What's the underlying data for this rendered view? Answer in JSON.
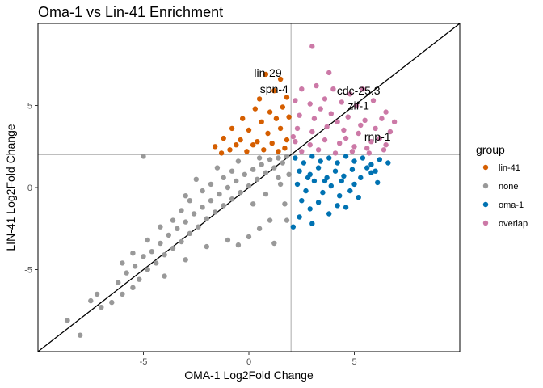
{
  "chart_data": {
    "type": "scatter",
    "title": "Oma-1 vs Lin-41 Enrichment",
    "xlabel": "OMA-1 Log2Fold Change",
    "ylabel": "LIN-41 Log2Fold Change",
    "xlim": [
      -10,
      10
    ],
    "ylim": [
      -10,
      10
    ],
    "x_ticks": [
      -5,
      0,
      5
    ],
    "y_ticks": [
      -5,
      0,
      5
    ],
    "x_tick_labels": [
      "-5",
      "0",
      "5"
    ],
    "y_tick_labels": [
      "-5",
      "0",
      "5"
    ],
    "grid": false,
    "threshold_lines": {
      "x": 2,
      "y": 2
    },
    "diagonal": {
      "slope": 1,
      "intercept": 0
    },
    "legend": {
      "title": "group",
      "placement": "right",
      "items": [
        {
          "label": "lin-41",
          "color": "#D55E00"
        },
        {
          "label": "none",
          "color": "#999999"
        },
        {
          "label": "oma-1",
          "color": "#0072B2"
        },
        {
          "label": "overlap",
          "color": "#CC79A7"
        }
      ]
    },
    "series": [
      {
        "name": "none",
        "color": "#999999",
        "points": [
          [
            -8.6,
            -8.1
          ],
          [
            -8.0,
            -9.0
          ],
          [
            -7.5,
            -6.9
          ],
          [
            -7.2,
            -6.5
          ],
          [
            -7.0,
            -7.3
          ],
          [
            -6.5,
            -7.0
          ],
          [
            -6.2,
            -5.8
          ],
          [
            -6.0,
            -6.5
          ],
          [
            -5.8,
            -5.2
          ],
          [
            -5.5,
            -6.1
          ],
          [
            -5.4,
            -4.8
          ],
          [
            -5.2,
            -5.6
          ],
          [
            -5.0,
            -4.2
          ],
          [
            -4.8,
            -5.0
          ],
          [
            -4.6,
            -3.9
          ],
          [
            -4.4,
            -4.6
          ],
          [
            -4.2,
            -3.4
          ],
          [
            -4.0,
            -4.1
          ],
          [
            -3.8,
            -2.9
          ],
          [
            -3.6,
            -3.7
          ],
          [
            -3.4,
            -2.5
          ],
          [
            -3.2,
            -3.3
          ],
          [
            -3.0,
            -2.1
          ],
          [
            -2.8,
            -2.8
          ],
          [
            -2.6,
            -1.6
          ],
          [
            -2.4,
            -2.4
          ],
          [
            -2.2,
            -1.2
          ],
          [
            -2.0,
            -1.9
          ],
          [
            -1.8,
            -0.8
          ],
          [
            -1.6,
            -1.5
          ],
          [
            -1.4,
            -0.4
          ],
          [
            -1.2,
            -1.1
          ],
          [
            -1.0,
            0.0
          ],
          [
            -0.8,
            -0.7
          ],
          [
            -0.6,
            0.4
          ],
          [
            -0.4,
            -0.3
          ],
          [
            -0.2,
            0.8
          ],
          [
            0.0,
            0.1
          ],
          [
            0.2,
            1.1
          ],
          [
            0.4,
            0.5
          ],
          [
            0.6,
            1.4
          ],
          [
            0.8,
            0.9
          ],
          [
            1.0,
            1.7
          ],
          [
            1.2,
            1.2
          ],
          [
            1.4,
            1.8
          ],
          [
            1.6,
            1.5
          ],
          [
            1.8,
            1.9
          ],
          [
            1.9,
            0.8
          ],
          [
            -5.0,
            1.9
          ],
          [
            -3.0,
            -0.5
          ],
          [
            -2.5,
            0.5
          ],
          [
            -1.5,
            1.2
          ],
          [
            -0.5,
            1.6
          ],
          [
            0.5,
            1.8
          ],
          [
            1.5,
            0.2
          ],
          [
            1.7,
            -1.0
          ],
          [
            1.0,
            -2.0
          ],
          [
            0.5,
            -2.5
          ],
          [
            0.0,
            -3.0
          ],
          [
            -0.5,
            -3.5
          ],
          [
            -1.0,
            -3.2
          ],
          [
            -2.0,
            -3.6
          ],
          [
            -3.0,
            -4.4
          ],
          [
            -4.0,
            -5.4
          ],
          [
            -5.5,
            -4.0
          ],
          [
            -6.0,
            -4.6
          ],
          [
            1.2,
            -3.4
          ],
          [
            1.8,
            -2.0
          ],
          [
            -1.2,
            0.6
          ],
          [
            -2.2,
            -0.2
          ],
          [
            -3.2,
            -1.4
          ],
          [
            -4.2,
            -2.4
          ],
          [
            -4.8,
            -3.2
          ],
          [
            0.2,
            -1.0
          ],
          [
            0.8,
            -0.4
          ],
          [
            1.4,
            0.6
          ],
          [
            -0.8,
            1.0
          ],
          [
            -1.8,
            0.2
          ],
          [
            -2.8,
            -0.8
          ],
          [
            -3.6,
            -2.0
          ]
        ]
      },
      {
        "name": "lin-41",
        "color": "#D55E00",
        "points": [
          [
            0.8,
            6.9
          ],
          [
            1.5,
            6.6
          ],
          [
            1.2,
            5.9
          ],
          [
            0.5,
            5.4
          ],
          [
            1.8,
            5.5
          ],
          [
            0.3,
            4.8
          ],
          [
            1.0,
            4.6
          ],
          [
            1.6,
            4.9
          ],
          [
            -0.3,
            4.2
          ],
          [
            0.6,
            4.0
          ],
          [
            1.3,
            4.2
          ],
          [
            1.9,
            4.3
          ],
          [
            -0.8,
            3.6
          ],
          [
            0.0,
            3.5
          ],
          [
            0.9,
            3.3
          ],
          [
            1.5,
            3.6
          ],
          [
            -1.2,
            3.0
          ],
          [
            -0.4,
            2.9
          ],
          [
            0.4,
            2.8
          ],
          [
            1.1,
            2.7
          ],
          [
            1.8,
            2.9
          ],
          [
            -1.6,
            2.5
          ],
          [
            -0.9,
            2.3
          ],
          [
            -0.1,
            2.2
          ],
          [
            0.7,
            2.3
          ],
          [
            1.4,
            2.2
          ],
          [
            -1.3,
            2.1
          ],
          [
            0.2,
            2.6
          ],
          [
            1.7,
            2.4
          ],
          [
            -0.6,
            2.6
          ]
        ]
      },
      {
        "name": "oma-1",
        "color": "#0072B2",
        "points": [
          [
            2.2,
            1.8
          ],
          [
            2.6,
            1.5
          ],
          [
            3.0,
            1.9
          ],
          [
            3.4,
            1.6
          ],
          [
            3.8,
            1.8
          ],
          [
            4.2,
            1.5
          ],
          [
            4.6,
            1.9
          ],
          [
            5.0,
            1.6
          ],
          [
            5.4,
            1.8
          ],
          [
            5.8,
            1.4
          ],
          [
            6.2,
            1.7
          ],
          [
            6.6,
            1.5
          ],
          [
            2.4,
            1.0
          ],
          [
            2.9,
            0.8
          ],
          [
            3.3,
            1.2
          ],
          [
            3.7,
            0.6
          ],
          [
            4.1,
            1.0
          ],
          [
            4.5,
            0.7
          ],
          [
            4.9,
            1.1
          ],
          [
            5.3,
            0.6
          ],
          [
            5.8,
            0.9
          ],
          [
            6.1,
            0.3
          ],
          [
            2.3,
            0.2
          ],
          [
            2.7,
            -0.2
          ],
          [
            3.1,
            0.4
          ],
          [
            3.5,
            -0.3
          ],
          [
            3.9,
            0.1
          ],
          [
            4.3,
            -0.5
          ],
          [
            4.8,
            -0.2
          ],
          [
            5.2,
            -0.6
          ],
          [
            2.5,
            -0.8
          ],
          [
            2.9,
            -1.3
          ],
          [
            3.3,
            -0.9
          ],
          [
            3.8,
            -1.6
          ],
          [
            4.2,
            -1.1
          ],
          [
            2.4,
            -1.8
          ],
          [
            2.1,
            -2.4
          ],
          [
            3.0,
            -2.2
          ],
          [
            4.6,
            -1.2
          ],
          [
            5.0,
            0.2
          ],
          [
            6.0,
            1.0
          ],
          [
            3.6,
            0.4
          ],
          [
            2.8,
            0.6
          ],
          [
            4.4,
            0.4
          ],
          [
            5.6,
            1.2
          ]
        ]
      },
      {
        "name": "overlap",
        "color": "#CC79A7",
        "points": [
          [
            3.0,
            8.6
          ],
          [
            3.8,
            7.0
          ],
          [
            2.5,
            6.0
          ],
          [
            3.2,
            6.2
          ],
          [
            4.0,
            6.0
          ],
          [
            4.8,
            5.7
          ],
          [
            5.4,
            6.0
          ],
          [
            2.2,
            5.3
          ],
          [
            2.9,
            5.1
          ],
          [
            3.6,
            5.4
          ],
          [
            4.4,
            5.2
          ],
          [
            5.1,
            5.0
          ],
          [
            5.9,
            5.3
          ],
          [
            6.5,
            4.6
          ],
          [
            2.4,
            4.4
          ],
          [
            3.1,
            4.2
          ],
          [
            3.9,
            4.5
          ],
          [
            4.7,
            4.3
          ],
          [
            5.5,
            4.1
          ],
          [
            6.3,
            4.2
          ],
          [
            6.9,
            4.0
          ],
          [
            2.3,
            3.6
          ],
          [
            3.0,
            3.4
          ],
          [
            3.7,
            3.7
          ],
          [
            4.5,
            3.5
          ],
          [
            5.2,
            3.3
          ],
          [
            6.0,
            3.6
          ],
          [
            6.7,
            3.4
          ],
          [
            2.2,
            2.8
          ],
          [
            2.9,
            2.6
          ],
          [
            3.6,
            2.9
          ],
          [
            4.3,
            2.7
          ],
          [
            5.0,
            2.5
          ],
          [
            5.8,
            2.8
          ],
          [
            6.5,
            2.6
          ],
          [
            2.5,
            2.2
          ],
          [
            3.3,
            2.3
          ],
          [
            4.1,
            2.1
          ],
          [
            4.9,
            2.2
          ],
          [
            5.7,
            2.1
          ],
          [
            6.4,
            2.3
          ],
          [
            2.1,
            3.1
          ],
          [
            4.6,
            3.0
          ],
          [
            5.3,
            3.8
          ],
          [
            6.2,
            3.0
          ],
          [
            3.4,
            4.8
          ],
          [
            4.2,
            4.0
          ],
          [
            5.6,
            2.4
          ]
        ]
      }
    ],
    "annotations": [
      {
        "text": "lin-29",
        "x": 0.9,
        "y": 7.0
      },
      {
        "text": "spn-4",
        "x": 1.2,
        "y": 6.0
      },
      {
        "text": "cdc-25.3",
        "x": 5.2,
        "y": 5.9
      },
      {
        "text": "zif-1",
        "x": 5.2,
        "y": 5.0
      },
      {
        "text": "rnp-1",
        "x": 6.1,
        "y": 3.1
      }
    ]
  }
}
